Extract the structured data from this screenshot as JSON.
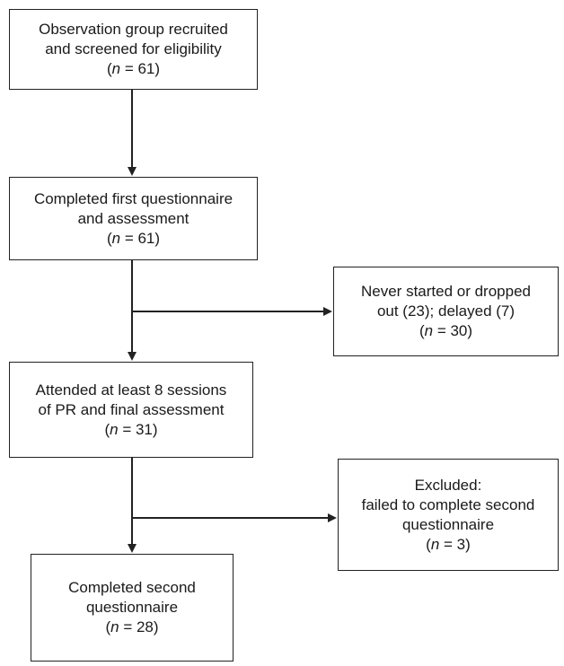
{
  "flowchart": {
    "box1": {
      "lines": [
        "Observation group recruited",
        "and screened for eligibility"
      ],
      "n_prefix": "(",
      "n_var": "n",
      "n_value": " = 61)"
    },
    "box2": {
      "lines": [
        "Completed first questionnaire",
        "and assessment"
      ],
      "n_prefix": "(",
      "n_var": "n",
      "n_value": " = 61)"
    },
    "box3": {
      "lines": [
        "Never started or dropped",
        "out (23); delayed (7)"
      ],
      "n_prefix": "(",
      "n_var": "n",
      "n_value": " = 30)"
    },
    "box4": {
      "lines": [
        "Attended at least 8 sessions",
        "of PR and final assessment"
      ],
      "n_prefix": "(",
      "n_var": "n",
      "n_value": " = 31)"
    },
    "box5": {
      "lines": [
        "Excluded:",
        "failed to complete second",
        "questionnaire"
      ],
      "n_prefix": "(",
      "n_var": "n",
      "n_value": " = 3)"
    },
    "box6": {
      "lines": [
        "Completed second",
        "questionnaire"
      ],
      "n_prefix": "(",
      "n_var": "n",
      "n_value": " = 28)"
    }
  }
}
